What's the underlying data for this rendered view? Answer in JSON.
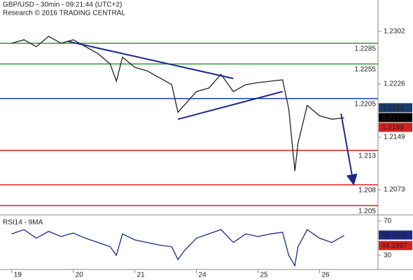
{
  "header": {
    "line1": "GBP/USD - 30min - 09:21:44 (UTC+2)",
    "line2": "Research © 2016 TRADING CENTRAL"
  },
  "chart_data": [
    {
      "type": "line",
      "color": "#222222",
      "x": [
        0,
        0.2,
        0.4,
        0.6,
        0.8,
        1.0,
        1.2,
        1.4,
        1.6,
        1.7,
        1.8,
        2.0,
        2.2,
        2.4,
        2.6,
        2.7,
        2.8,
        3.0,
        3.2,
        3.4,
        3.6,
        3.8,
        4.0,
        4.2,
        4.4,
        4.5,
        4.6,
        4.65,
        4.8,
        5.0,
        5.2,
        5.4
      ],
      "values": [
        1.2285,
        1.229,
        1.228,
        1.2295,
        1.2285,
        1.229,
        1.228,
        1.227,
        1.2255,
        1.223,
        1.2265,
        1.225,
        1.2245,
        1.2235,
        1.2225,
        1.2185,
        1.2195,
        1.2215,
        1.222,
        1.224,
        1.2215,
        1.2225,
        1.2228,
        1.223,
        1.2232,
        1.219,
        1.21,
        1.214,
        1.2195,
        1.218,
        1.2175,
        1.2177
      ],
      "xlim": [
        -0.19,
        5.95
      ],
      "xticks": [
        {
          "value": 0,
          "label": "19"
        },
        {
          "value": 1,
          "label": "20"
        },
        {
          "value": 2,
          "label": "21"
        },
        {
          "value": 3,
          "label": "24"
        },
        {
          "value": 4,
          "label": "25"
        },
        {
          "value": 5,
          "label": "26"
        }
      ],
      "ylim": [
        1.20385,
        1.23476
      ],
      "yticks": [
        1.2302,
        1.2226,
        1.2149,
        1.2073
      ],
      "levels": [
        {
          "value": 1.2285,
          "color": "#2e9b2e"
        },
        {
          "value": 1.2255,
          "color": "#2e9b2e"
        },
        {
          "value": 1.2205,
          "color": "#1f3fbf"
        },
        {
          "value": 1.213,
          "color": "#d62020"
        },
        {
          "value": 1.208,
          "color": "#d62020"
        },
        {
          "value": 1.205,
          "color": "#d62020"
        }
      ],
      "price_labels": [
        {
          "value": 1.2183,
          "color": "#1a3a6e"
        },
        {
          "value": 1.2177,
          "color": "#000000"
        },
        {
          "value": 1.2169,
          "color": "#d62020"
        }
      ],
      "trendlines": [
        {
          "x": [
            0.9,
            3.6
          ],
          "y": [
            1.2288,
            1.2234
          ],
          "color": "#1a2a8a"
        },
        {
          "x": [
            2.7,
            4.4
          ],
          "y": [
            1.2175,
            1.2215
          ],
          "color": "#1a2a8a"
        },
        {
          "x": [
            5.35,
            5.55
          ],
          "y": [
            1.2183,
            1.2083
          ],
          "color": "#1a2a8a",
          "arrow": true
        }
      ]
    },
    {
      "type": "line",
      "title": "RSI14 - 9MA",
      "color": "#1a2a8a",
      "values": [
        55,
        60,
        50,
        58,
        52,
        56,
        50,
        45,
        40,
        30,
        55,
        48,
        45,
        42,
        40,
        25,
        35,
        50,
        55,
        60,
        45,
        55,
        52,
        55,
        57,
        30,
        18,
        40,
        60,
        50,
        45,
        53.2809
      ],
      "ylim": [
        13.5,
        73.1
      ],
      "yticks": [
        70,
        30
      ],
      "price_labels": [
        {
          "value": 53.2809,
          "color": "#1a2a8a"
        },
        {
          "value": 44.3397,
          "color": "#d62020"
        }
      ]
    }
  ]
}
